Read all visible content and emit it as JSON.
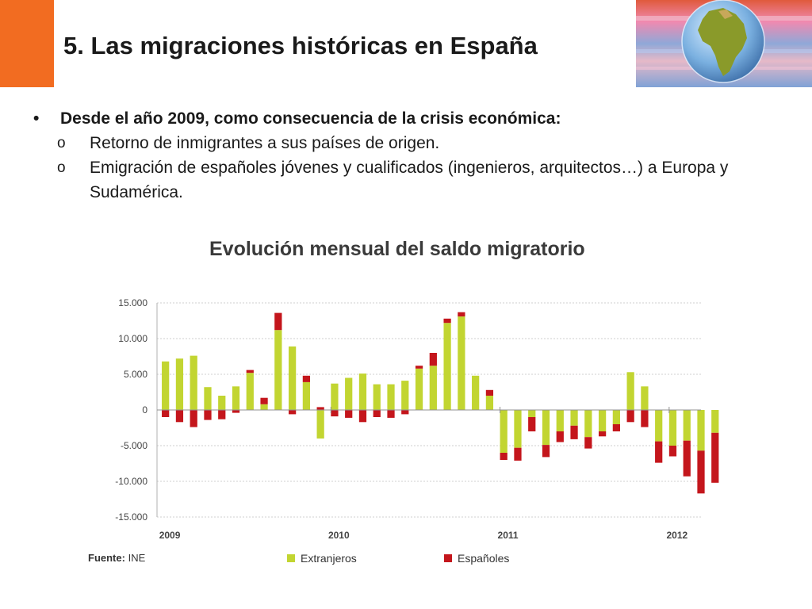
{
  "slide": {
    "title": "5. Las migraciones históricas en España",
    "accent_color": "#f26c21"
  },
  "bullets": {
    "main": "Desde el año 2009, como consecuencia de la crisis económica:",
    "subs": [
      "Retorno de inmigrantes a sus países de origen.",
      "Emigración de españoles jóvenes y cualificados (ingenieros, arquitectos…) a Europa y Sudamérica."
    ],
    "main_marker": "•",
    "sub_marker": "o"
  },
  "chart_data": {
    "type": "bar",
    "title": "Evolución mensual del saldo migratorio",
    "source_label": "Fuente:",
    "source_value": "INE",
    "x_tick_labels": [
      "2009",
      "2010",
      "2011",
      "2012"
    ],
    "y_tick_labels": [
      "15.000",
      "10.000",
      "5.000",
      "0",
      "-5.000",
      "-10.000",
      "-15.000"
    ],
    "ylim": [
      -15000,
      15000
    ],
    "grid": true,
    "months": [
      "2009-01",
      "2009-02",
      "2009-03",
      "2009-04",
      "2009-05",
      "2009-06",
      "2009-07",
      "2009-08",
      "2009-09",
      "2009-10",
      "2009-11",
      "2009-12",
      "2010-01",
      "2010-02",
      "2010-03",
      "2010-04",
      "2010-05",
      "2010-06",
      "2010-07",
      "2010-08",
      "2010-09",
      "2010-10",
      "2010-11",
      "2010-12",
      "2011-01",
      "2011-02",
      "2011-03",
      "2011-04",
      "2011-05",
      "2011-06",
      "2011-07",
      "2011-08",
      "2011-09",
      "2011-10",
      "2011-11",
      "2011-12",
      "2012-01",
      "2012-02",
      "2012-03",
      "2012-04"
    ],
    "series": [
      {
        "name": "Extranjeros",
        "color": "#c2d531",
        "values": [
          6800,
          7200,
          7600,
          3200,
          2000,
          3300,
          5200,
          800,
          11200,
          8900,
          3900,
          -4000,
          3700,
          4500,
          5100,
          3600,
          3600,
          4100,
          5800,
          6200,
          12200,
          13100,
          4800,
          2000,
          -6000,
          -5300,
          -1000,
          -4900,
          -3000,
          -2200,
          -3800,
          -3000,
          -2000,
          5300,
          3300,
          -4400,
          -5000,
          -4300,
          -5700,
          -3200
        ]
      },
      {
        "name": "Españoles",
        "color": "#c4161c",
        "values": [
          -1000,
          -1700,
          -2400,
          -1400,
          -1300,
          -400,
          400,
          900,
          2400,
          -600,
          900,
          400,
          -900,
          -1100,
          -1700,
          -1000,
          -1100,
          -600,
          400,
          1800,
          600,
          600,
          0,
          800,
          -1000,
          -1800,
          -2000,
          -1700,
          -1500,
          -1900,
          -1600,
          -700,
          -1000,
          -1700,
          -2400,
          -3000,
          -1500,
          -5000,
          -6000,
          -7000
        ]
      }
    ]
  }
}
